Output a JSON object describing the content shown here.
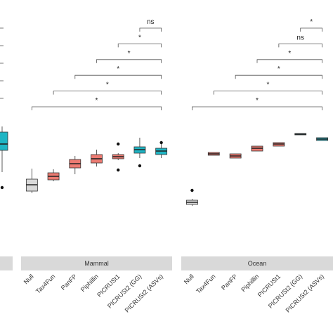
{
  "chart_data": {
    "type": "boxplot",
    "ylim": [
      0,
      325
    ],
    "facets": [
      {
        "categories": [
          null
        ],
        "boxes": [
          {
            "min": 110,
            "q1": 141,
            "median": 150,
            "q3": 167,
            "max": 175,
            "outliers": [
              88
            ],
            "color": "#1fb5c4"
          }
        ]
      },
      {
        "strip": "Mammal",
        "categories": [
          "Null",
          "Tax4Fun",
          "PanFP",
          "Piphillin",
          "PICRUSt1",
          "PICRUSt2 (GG)",
          "PICRUSt2 (ASVs)"
        ],
        "boxes": [
          {
            "min": 80,
            "q1": 83,
            "median": 92,
            "q3": 100,
            "max": 115,
            "outliers": [],
            "color": "#d9d9d9"
          },
          {
            "min": 97,
            "q1": 99,
            "median": 104,
            "q3": 109,
            "max": 114,
            "outliers": [],
            "color": "#ec7b72"
          },
          {
            "min": 107,
            "q1": 116,
            "median": 122,
            "q3": 128,
            "max": 133,
            "outliers": [],
            "color": "#ec7b72"
          },
          {
            "min": 118,
            "q1": 123,
            "median": 129,
            "q3": 135,
            "max": 142,
            "outliers": [],
            "color": "#ec7b72"
          },
          {
            "min": 127,
            "q1": 129,
            "median": 132,
            "q3": 135,
            "max": 137,
            "outliers": [
              150,
              113
            ],
            "color": "#ec7b72"
          },
          {
            "min": 130,
            "q1": 137,
            "median": 142,
            "q3": 146,
            "max": 159,
            "outliers": [
              119
            ],
            "color": "#1fb5c4"
          },
          {
            "min": 130,
            "q1": 135,
            "median": 140,
            "q3": 144,
            "max": 150,
            "outliers": [
              152
            ],
            "color": "#1fb5c4"
          }
        ],
        "comparisons": [
          {
            "from": 0,
            "to": 6,
            "label": "*"
          },
          {
            "from": 1,
            "to": 6,
            "label": "*"
          },
          {
            "from": 2,
            "to": 6,
            "label": "*"
          },
          {
            "from": 3,
            "to": 6,
            "label": "*"
          },
          {
            "from": 4,
            "to": 6,
            "label": "*"
          },
          {
            "from": 5,
            "to": 6,
            "label": "ns"
          }
        ]
      },
      {
        "strip": "Ocean",
        "categories": [
          "Null",
          "Tax4Fun",
          "PanFP",
          "Piphillin",
          "PICRUSt1",
          "PICRUSt2 (GG)",
          "PICRUSt2 (ASVs)"
        ],
        "boxes": [
          {
            "min": 62,
            "q1": 64,
            "median": 67,
            "q3": 70,
            "max": 72,
            "outliers": [
              84
            ],
            "color": "#d9d9d9"
          },
          {
            "min": 134,
            "q1": 134,
            "median": 136,
            "q3": 138,
            "max": 138,
            "outliers": [],
            "color": "#ec7b72"
          },
          {
            "min": 130,
            "q1": 130,
            "median": 133,
            "q3": 136,
            "max": 136,
            "outliers": [],
            "color": "#ec7b72"
          },
          {
            "min": 140,
            "q1": 140,
            "median": 144,
            "q3": 147,
            "max": 147,
            "outliers": [],
            "color": "#ec7b72"
          },
          {
            "min": 147,
            "q1": 147,
            "median": 150,
            "q3": 152,
            "max": 152,
            "outliers": [],
            "color": "#ec7b72"
          },
          {
            "min": 163,
            "q1": 163,
            "median": 164,
            "q3": 165,
            "max": 165,
            "outliers": [],
            "color": "#1fb5c4"
          },
          {
            "min": 155,
            "q1": 155,
            "median": 157,
            "q3": 159,
            "max": 159,
            "outliers": [],
            "color": "#1fb5c4"
          }
        ],
        "comparisons": [
          {
            "from": 0,
            "to": 6,
            "label": "*"
          },
          {
            "from": 1,
            "to": 6,
            "label": "*"
          },
          {
            "from": 2,
            "to": 6,
            "label": "*"
          },
          {
            "from": 3,
            "to": 6,
            "label": "*"
          },
          {
            "from": 4,
            "to": 6,
            "label": "ns"
          },
          {
            "from": 5,
            "to": 6,
            "label": "*"
          }
        ]
      }
    ]
  }
}
